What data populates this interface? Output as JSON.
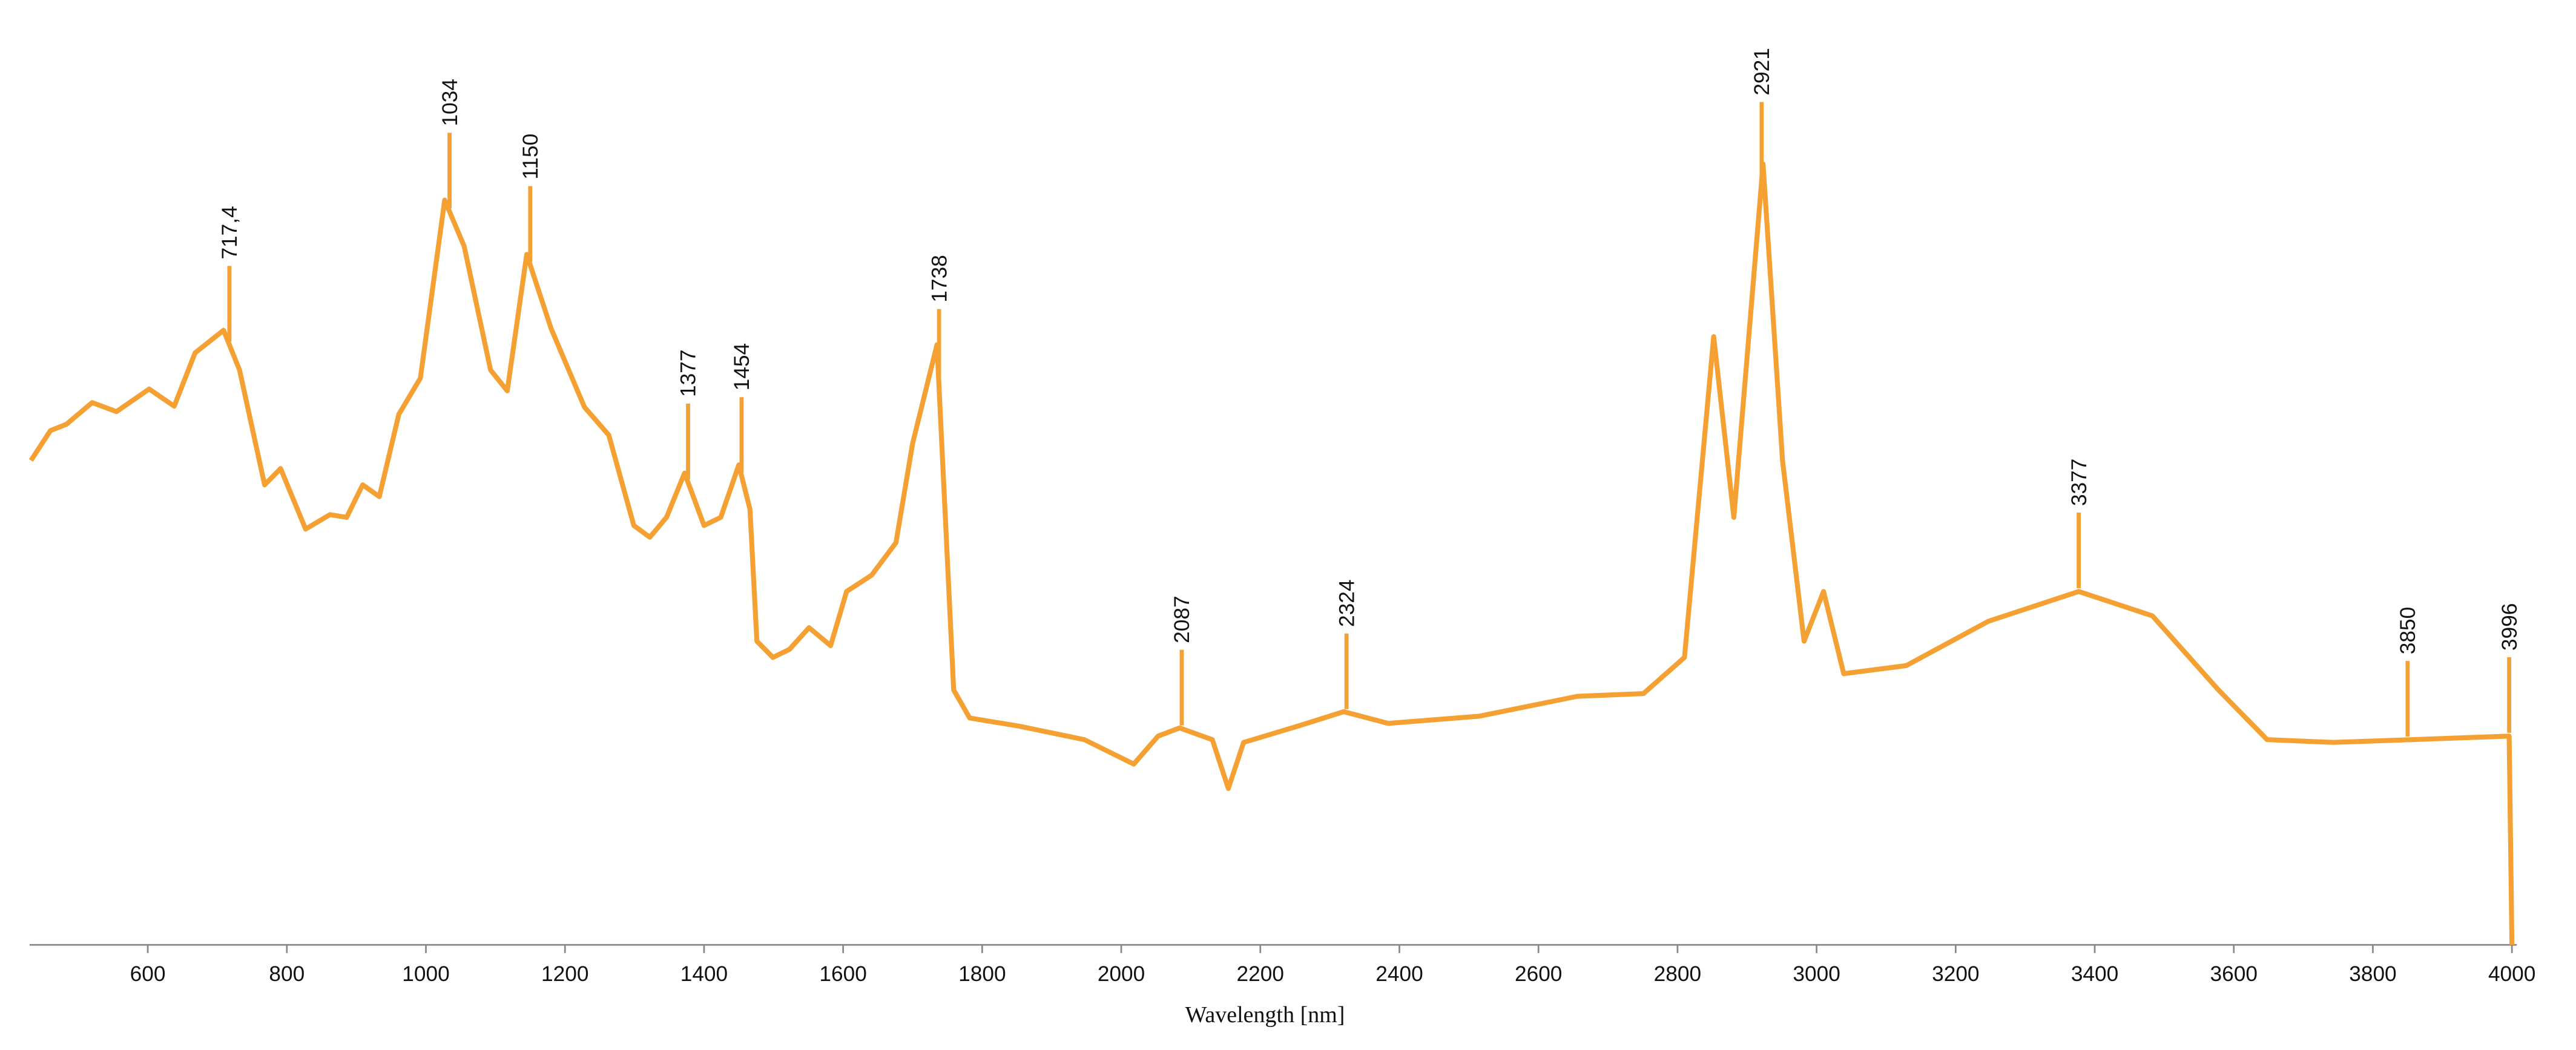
{
  "chart_data": {
    "type": "line",
    "x_label": "Wavelength [nm]",
    "x": [
      432,
      460,
      483,
      520,
      555,
      602,
      638,
      668,
      709,
      732,
      768,
      791,
      827,
      862,
      886,
      909,
      933,
      961,
      992,
      1027,
      1055,
      1093,
      1117,
      1145,
      1180,
      1228,
      1263,
      1299,
      1322,
      1346,
      1372,
      1400,
      1424,
      1450,
      1466,
      1476,
      1499,
      1523,
      1551,
      1582,
      1605,
      1641,
      1676,
      1700,
      1735,
      1759,
      1782,
      1853,
      1947,
      2018,
      2053,
      2084,
      2131,
      2154,
      2176,
      2254,
      2320,
      2384,
      2515,
      2656,
      2751,
      2810,
      2852,
      2881,
      2923,
      2951,
      2982,
      3010,
      3039,
      3129,
      3247,
      3377,
      3483,
      3578,
      3648,
      3743,
      3856,
      3996,
      4000
    ],
    "values": [
      53.6,
      56.9,
      57.6,
      60,
      59,
      61.5,
      59.6,
      65.5,
      68,
      63.6,
      50.9,
      52.7,
      46,
      47.6,
      47.3,
      50.9,
      49.6,
      58.7,
      62.7,
      82.4,
      77.3,
      63.6,
      61.3,
      76.4,
      68.2,
      59.5,
      56.4,
      46.4,
      45.1,
      47.3,
      52.2,
      46.4,
      47.3,
      53.1,
      48.2,
      33.6,
      31.8,
      32.7,
      35.1,
      33.1,
      39.1,
      40.9,
      44.5,
      55.5,
      66.4,
      28.2,
      25.1,
      24.2,
      22.7,
      20,
      23.1,
      24,
      22.7,
      17.3,
      22.4,
      24.2,
      25.8,
      24.5,
      25.3,
      27.5,
      27.8,
      31.8,
      67.3,
      47.3,
      86.4,
      53.6,
      33.6,
      39.1,
      30,
      30.9,
      35.8,
      39.1,
      36.4,
      28.2,
      22.7,
      22.4,
      22.7,
      23.1,
      0
    ],
    "color": "#f5a033",
    "xlim": [
      430,
      4000
    ],
    "ylim": [
      0,
      100
    ],
    "xticks": [
      600,
      800,
      1000,
      1200,
      1400,
      1600,
      1800,
      2000,
      2200,
      2400,
      2600,
      2800,
      3000,
      3200,
      3400,
      3600,
      3800,
      4000
    ],
    "annotations": [
      {
        "value": 717.4,
        "label": "717,4"
      },
      1034,
      1150,
      1377,
      1454,
      1738,
      2087,
      2324,
      2921,
      3377,
      3850,
      3996
    ]
  }
}
